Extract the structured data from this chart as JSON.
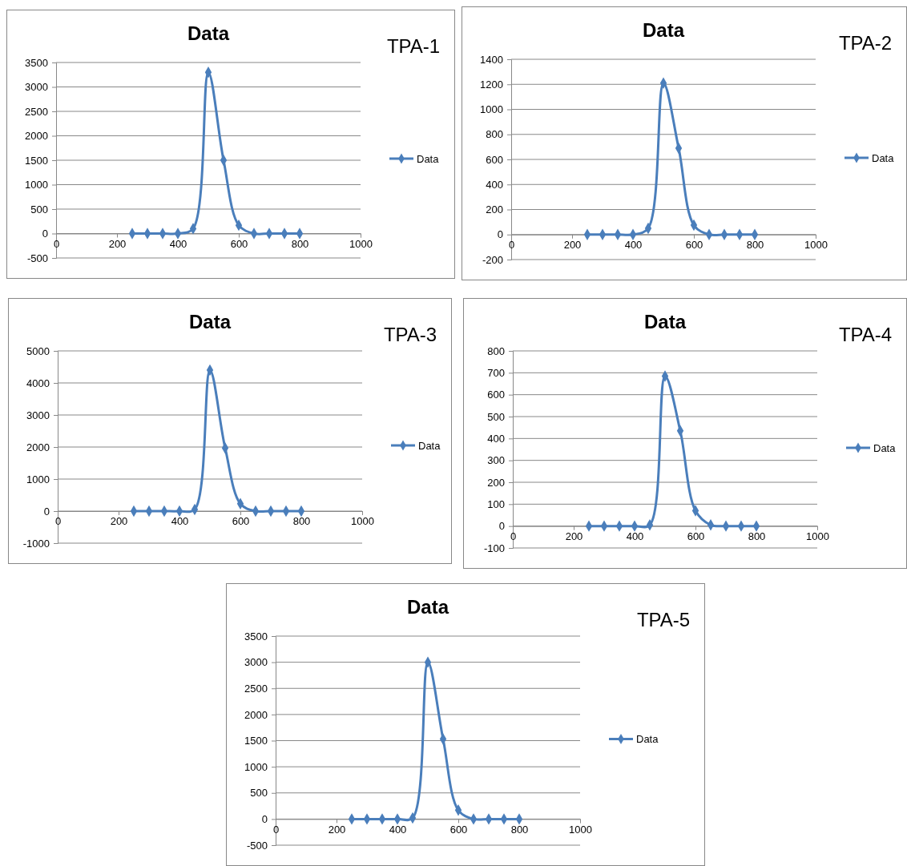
{
  "chart_data": [
    {
      "type": "line",
      "title": "Data",
      "annotations": [
        "TPA-1"
      ],
      "x": [
        250,
        300,
        350,
        400,
        450,
        500,
        550,
        600,
        650,
        700,
        750,
        800
      ],
      "series": [
        {
          "name": "Data",
          "color": "#4a7ebb",
          "values": [
            0,
            0,
            0,
            0,
            100,
            3300,
            1500,
            170,
            0,
            0,
            0,
            0
          ]
        }
      ],
      "xlim": [
        0,
        1000
      ],
      "xticks": [
        0,
        200,
        400,
        600,
        800,
        1000
      ],
      "ylim": [
        -500,
        3500
      ],
      "yticks": [
        -500,
        0,
        500,
        1000,
        1500,
        2000,
        2500,
        3000,
        3500
      ],
      "grid": "y",
      "legend": "right",
      "marker": "diamond",
      "line_style": "solid"
    },
    {
      "type": "line",
      "title": "Data",
      "annotations": [
        "TPA-2"
      ],
      "x": [
        250,
        300,
        350,
        400,
        450,
        500,
        550,
        600,
        650,
        700,
        750,
        800
      ],
      "series": [
        {
          "name": "Data",
          "color": "#4a7ebb",
          "values": [
            0,
            0,
            0,
            0,
            50,
            1210,
            690,
            75,
            0,
            0,
            0,
            0
          ]
        }
      ],
      "xlim": [
        0,
        1000
      ],
      "xticks": [
        0,
        200,
        400,
        600,
        800,
        1000
      ],
      "ylim": [
        -200,
        1400
      ],
      "yticks": [
        -200,
        0,
        200,
        400,
        600,
        800,
        1000,
        1200,
        1400
      ],
      "grid": "y",
      "legend": "right",
      "marker": "diamond",
      "line_style": "solid"
    },
    {
      "type": "line",
      "title": "Data",
      "annotations": [
        "TPA-3"
      ],
      "x": [
        250,
        300,
        350,
        400,
        450,
        500,
        550,
        600,
        650,
        700,
        750,
        800
      ],
      "series": [
        {
          "name": "Data",
          "color": "#4a7ebb",
          "values": [
            0,
            0,
            0,
            0,
            50,
            4400,
            1970,
            230,
            0,
            0,
            0,
            0
          ]
        }
      ],
      "xlim": [
        0,
        1000
      ],
      "xticks": [
        0,
        200,
        400,
        600,
        800,
        1000
      ],
      "ylim": [
        -1000,
        5000
      ],
      "yticks": [
        -1000,
        0,
        1000,
        2000,
        3000,
        4000,
        5000
      ],
      "grid": "y",
      "legend": "right",
      "marker": "diamond",
      "line_style": "solid"
    },
    {
      "type": "line",
      "title": "Data",
      "annotations": [
        "TPA-4"
      ],
      "x": [
        250,
        300,
        350,
        400,
        450,
        500,
        550,
        600,
        650,
        700,
        750,
        800
      ],
      "series": [
        {
          "name": "Data",
          "color": "#4a7ebb",
          "values": [
            0,
            0,
            0,
            0,
            5,
            685,
            435,
            70,
            5,
            0,
            0,
            0
          ]
        }
      ],
      "xlim": [
        0,
        1000
      ],
      "xticks": [
        0,
        200,
        400,
        600,
        800,
        1000
      ],
      "ylim": [
        -100,
        800
      ],
      "yticks": [
        -100,
        0,
        100,
        200,
        300,
        400,
        500,
        600,
        700,
        800
      ],
      "grid": "y",
      "legend": "right",
      "marker": "diamond",
      "line_style": "solid"
    },
    {
      "type": "line",
      "title": "Data",
      "annotations": [
        "TPA-5"
      ],
      "x": [
        250,
        300,
        350,
        400,
        450,
        500,
        550,
        600,
        650,
        700,
        750,
        800
      ],
      "series": [
        {
          "name": "Data",
          "color": "#4a7ebb",
          "values": [
            0,
            0,
            0,
            0,
            20,
            3000,
            1530,
            170,
            0,
            0,
            0,
            0
          ]
        }
      ],
      "xlim": [
        0,
        1000
      ],
      "xticks": [
        0,
        200,
        400,
        600,
        800,
        1000
      ],
      "ylim": [
        -500,
        3500
      ],
      "yticks": [
        -500,
        0,
        500,
        1000,
        1500,
        2000,
        2500,
        3000,
        3500
      ],
      "grid": "y",
      "legend": "right",
      "marker": "diamond",
      "line_style": "solid"
    }
  ]
}
